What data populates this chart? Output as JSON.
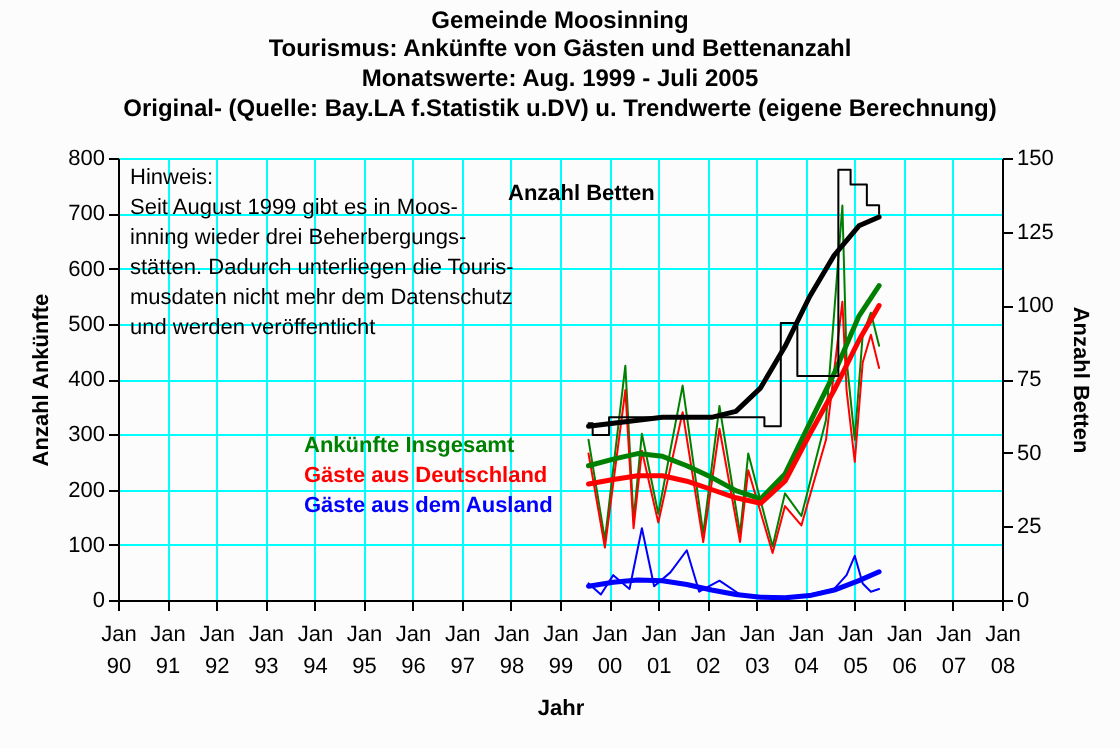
{
  "chart_data": {
    "type": "line",
    "title": "Gemeinde Moosinning",
    "subtitle": "Tourismus: Ankünfte von Gästen und Bettenanzahl\nMonatswerte: Aug. 1999 - Juli 2005\nOriginal- (Quelle: Bay.LA f.Statistik u.DV) u. Trendwerte (eigene Berechnung)",
    "xlabel": "Jahr",
    "ylabel": "Anzahl Ankünfte",
    "y2label": "Anzahl Betten",
    "annotations": [
      "Hinweis:\nSeit August 1999 gibt es in Moos-\ninning wieder drei Beherbergungs-\nstätten. Dadurch unterliegen die Touris-\nmusdaten nicht mehr dem Datenschutz\nund werden veröffentlicht"
    ],
    "xlim": [
      "1990-01",
      "2008-01"
    ],
    "xticks": [
      {
        "value": "1990-01",
        "label": "Jan 90"
      },
      {
        "value": "1991-01",
        "label": "Jan 91"
      },
      {
        "value": "1992-01",
        "label": "Jan 92"
      },
      {
        "value": "1993-01",
        "label": "Jan 93"
      },
      {
        "value": "1994-01",
        "label": "Jan 94"
      },
      {
        "value": "1995-01",
        "label": "Jan 95"
      },
      {
        "value": "1996-01",
        "label": "Jan 96"
      },
      {
        "value": "1997-01",
        "label": "Jan 97"
      },
      {
        "value": "1998-01",
        "label": "Jan 98"
      },
      {
        "value": "1999-01",
        "label": "Jan 99"
      },
      {
        "value": "2000-01",
        "label": "Jan 00"
      },
      {
        "value": "2001-01",
        "label": "Jan 01"
      },
      {
        "value": "2002-01",
        "label": "Jan 02"
      },
      {
        "value": "2003-01",
        "label": "Jan 03"
      },
      {
        "value": "2004-01",
        "label": "Jan 04"
      },
      {
        "value": "2005-01",
        "label": "Jan 05"
      },
      {
        "value": "2006-01",
        "label": "Jan 06"
      },
      {
        "value": "2007-01",
        "label": "Jan 07"
      },
      {
        "value": "2008-01",
        "label": "Jan 08"
      }
    ],
    "ylim": [
      0,
      800
    ],
    "yticks": [
      0,
      100,
      200,
      300,
      400,
      500,
      600,
      700,
      800
    ],
    "y2lim": [
      0,
      150
    ],
    "y2ticks": [
      0,
      25,
      50,
      75,
      100,
      125,
      150
    ],
    "grid": true,
    "series": [
      {
        "color": "#008000",
        "x": [
          "1999-08",
          "1999-12",
          "2000-05",
          "2000-07",
          "2000-09",
          "2001-01",
          "2001-07",
          "2001-12",
          "2002-04",
          "2002-09",
          "2002-11",
          "2003-05",
          "2003-08",
          "2003-12",
          "2004-06",
          "2004-10",
          "2004-11",
          "2005-01",
          "2005-03",
          "2005-05",
          "2005-07"
        ],
        "values": [
          290,
          109,
          424,
          145,
          301,
          156,
          388,
          120,
          351,
          120,
          265,
          97,
          193,
          152,
          326,
          714,
          435,
          290,
          480,
          520,
          460
        ]
      },
      {
        "color": "#ff0000",
        "x": [
          "1999-08",
          "1999-12",
          "2000-05",
          "2000-07",
          "2000-09",
          "2001-01",
          "2001-07",
          "2001-12",
          "2002-04",
          "2002-09",
          "2002-11",
          "2003-05",
          "2003-08",
          "2003-12",
          "2004-06",
          "2004-10",
          "2004-11",
          "2005-01",
          "2005-03",
          "2005-05",
          "2005-07"
        ],
        "values": [
          265,
          95,
          380,
          130,
          270,
          140,
          340,
          105,
          310,
          105,
          235,
          85,
          170,
          135,
          290,
          540,
          380,
          250,
          430,
          480,
          420
        ]
      },
      {
        "color": "#0000ff",
        "x": [
          "1999-08",
          "1999-11",
          "2000-02",
          "2000-06",
          "2000-09",
          "2000-12",
          "2001-04",
          "2001-08",
          "2001-11",
          "2002-04",
          "2002-09",
          "2003-02",
          "2003-08",
          "2004-02",
          "2004-08",
          "2004-11",
          "2005-01",
          "2005-03",
          "2005-05",
          "2005-07"
        ],
        "values": [
          30,
          10,
          45,
          20,
          130,
          25,
          50,
          90,
          15,
          35,
          10,
          5,
          3,
          10,
          20,
          45,
          80,
          30,
          15,
          20
        ]
      },
      {
        "name": "Ankünfte Insgesamt",
        "color": "#008000",
        "x": [
          "1999-08",
          "2000-02",
          "2000-08",
          "2001-02",
          "2001-08",
          "2002-02",
          "2002-08",
          "2003-02",
          "2003-08",
          "2004-02",
          "2004-08",
          "2005-02",
          "2005-07"
        ],
        "values": [
          243,
          255,
          265,
          260,
          243,
          222,
          198,
          183,
          228,
          320,
          410,
          514,
          569
        ]
      },
      {
        "name": "Gäste aus Deutschland",
        "color": "#ff0000",
        "x": [
          "1999-08",
          "2000-02",
          "2000-08",
          "2001-02",
          "2001-08",
          "2002-02",
          "2002-08",
          "2003-02",
          "2003-08",
          "2004-02",
          "2004-08",
          "2005-02",
          "2005-07"
        ],
        "values": [
          210,
          218,
          225,
          225,
          215,
          200,
          185,
          175,
          215,
          300,
          380,
          470,
          533
        ]
      },
      {
        "name": "Gäste aus dem Ausland",
        "color": "#0000ff",
        "x": [
          "1999-08",
          "2000-02",
          "2000-08",
          "2001-02",
          "2001-08",
          "2002-02",
          "2002-08",
          "2003-02",
          "2003-08",
          "2004-02",
          "2004-08",
          "2005-02",
          "2005-07"
        ],
        "values": [
          25,
          32,
          36,
          35,
          28,
          18,
          10,
          5,
          4,
          8,
          18,
          35,
          51
        ]
      },
      {
        "type": "step",
        "axis": "y2",
        "color": "#000000",
        "x": [
          "1999-08",
          "1999-09",
          "2000-01",
          "2003-03",
          "2003-07",
          "2003-11",
          "2004-09",
          "2004-12",
          "2005-04",
          "2005-07"
        ],
        "values": [
          60,
          56,
          62,
          59,
          94,
          76,
          146,
          141,
          134,
          131
        ]
      },
      {
        "name": "Anzahl Betten",
        "axis": "y2",
        "color": "#000000",
        "x": [
          "1999-08",
          "2000-02",
          "2000-08",
          "2001-02",
          "2001-08",
          "2002-02",
          "2002-08",
          "2003-02",
          "2003-08",
          "2004-02",
          "2004-08",
          "2005-02",
          "2005-07"
        ],
        "values": [
          59,
          60,
          61,
          62,
          62,
          62,
          64,
          72,
          86,
          103,
          117,
          127,
          130
        ]
      }
    ]
  }
}
